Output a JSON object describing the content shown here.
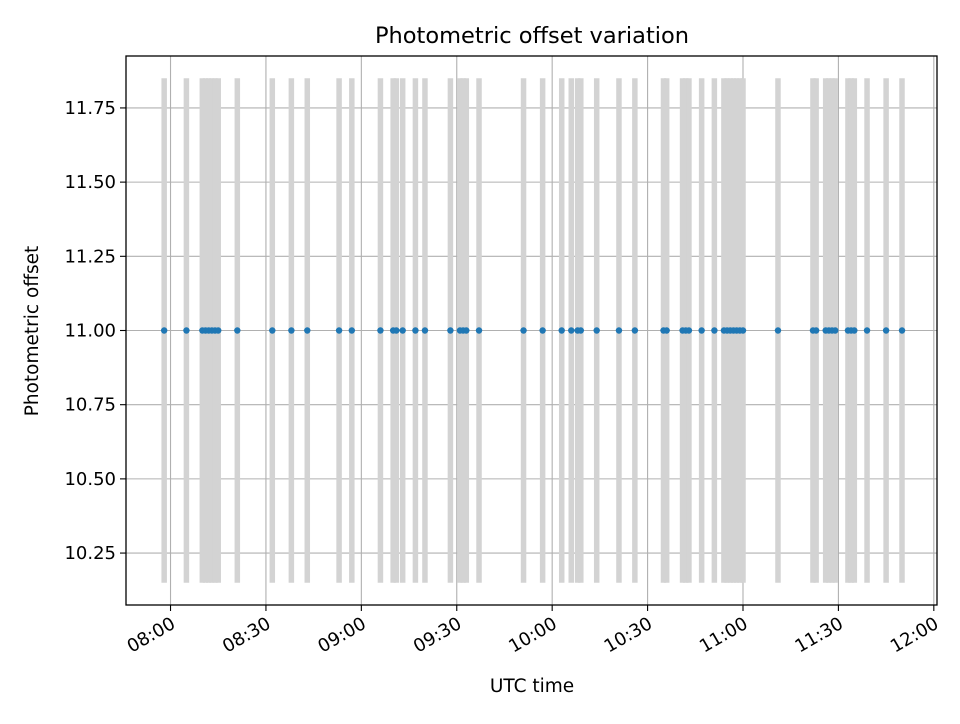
{
  "chart_data": {
    "type": "scatter",
    "title": "Photometric offset variation",
    "xlabel": "UTC time",
    "ylabel": "Photometric offset",
    "grid": true,
    "xlim": [
      "07:46",
      "12:01"
    ],
    "ylim": [
      10.075,
      11.925
    ],
    "xticks": [
      "08:00",
      "08:30",
      "09:00",
      "09:30",
      "10:00",
      "10:30",
      "11:00",
      "11:30",
      "12:00"
    ],
    "yticks": [
      "10.25",
      "10.50",
      "10.75",
      "11.00",
      "11.25",
      "11.50",
      "11.75"
    ],
    "colors": {
      "points": "#1f77b4",
      "error_bars": "#d3d3d3",
      "grid": "#b0b0b0",
      "axes": "#000000"
    },
    "error_band": [
      10.15,
      11.85
    ],
    "series": [
      {
        "values": [
          {
            "x": "07:58",
            "y": 11.0
          },
          {
            "x": "08:05",
            "y": 11.0
          },
          {
            "x": "08:10",
            "y": 11.0
          },
          {
            "x": "08:11",
            "y": 11.0
          },
          {
            "x": "08:12",
            "y": 11.0
          },
          {
            "x": "08:13",
            "y": 11.0
          },
          {
            "x": "08:14",
            "y": 11.0
          },
          {
            "x": "08:15",
            "y": 11.0
          },
          {
            "x": "08:21",
            "y": 11.0
          },
          {
            "x": "08:32",
            "y": 11.0
          },
          {
            "x": "08:38",
            "y": 11.0
          },
          {
            "x": "08:43",
            "y": 11.0
          },
          {
            "x": "08:53",
            "y": 11.0
          },
          {
            "x": "08:57",
            "y": 11.0
          },
          {
            "x": "09:06",
            "y": 11.0
          },
          {
            "x": "09:10",
            "y": 11.0
          },
          {
            "x": "09:11",
            "y": 11.0
          },
          {
            "x": "09:13",
            "y": 11.0
          },
          {
            "x": "09:17",
            "y": 11.0
          },
          {
            "x": "09:20",
            "y": 11.0
          },
          {
            "x": "09:28",
            "y": 11.0
          },
          {
            "x": "09:31",
            "y": 11.0
          },
          {
            "x": "09:32",
            "y": 11.0
          },
          {
            "x": "09:33",
            "y": 11.0
          },
          {
            "x": "09:37",
            "y": 11.0
          },
          {
            "x": "09:51",
            "y": 11.0
          },
          {
            "x": "09:57",
            "y": 11.0
          },
          {
            "x": "10:03",
            "y": 11.0
          },
          {
            "x": "10:06",
            "y": 11.0
          },
          {
            "x": "10:08",
            "y": 11.0
          },
          {
            "x": "10:09",
            "y": 11.0
          },
          {
            "x": "10:14",
            "y": 11.0
          },
          {
            "x": "10:21",
            "y": 11.0
          },
          {
            "x": "10:26",
            "y": 11.0
          },
          {
            "x": "10:35",
            "y": 11.0
          },
          {
            "x": "10:36",
            "y": 11.0
          },
          {
            "x": "10:41",
            "y": 11.0
          },
          {
            "x": "10:42",
            "y": 11.0
          },
          {
            "x": "10:43",
            "y": 11.0
          },
          {
            "x": "10:47",
            "y": 11.0
          },
          {
            "x": "10:51",
            "y": 11.0
          },
          {
            "x": "10:54",
            "y": 11.0
          },
          {
            "x": "10:55",
            "y": 11.0
          },
          {
            "x": "10:56",
            "y": 11.0
          },
          {
            "x": "10:57",
            "y": 11.0
          },
          {
            "x": "10:58",
            "y": 11.0
          },
          {
            "x": "10:59",
            "y": 11.0
          },
          {
            "x": "11:00",
            "y": 11.0
          },
          {
            "x": "11:11",
            "y": 11.0
          },
          {
            "x": "11:22",
            "y": 11.0
          },
          {
            "x": "11:23",
            "y": 11.0
          },
          {
            "x": "11:26",
            "y": 11.0
          },
          {
            "x": "11:27",
            "y": 11.0
          },
          {
            "x": "11:28",
            "y": 11.0
          },
          {
            "x": "11:29",
            "y": 11.0
          },
          {
            "x": "11:33",
            "y": 11.0
          },
          {
            "x": "11:34",
            "y": 11.0
          },
          {
            "x": "11:35",
            "y": 11.0
          },
          {
            "x": "11:39",
            "y": 11.0
          },
          {
            "x": "11:45",
            "y": 11.0
          },
          {
            "x": "11:50",
            "y": 11.0
          }
        ]
      }
    ]
  }
}
